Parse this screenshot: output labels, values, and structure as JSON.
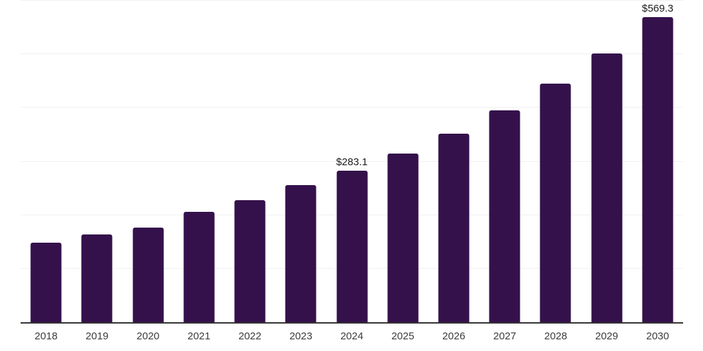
{
  "chart_data": {
    "type": "bar",
    "title": "",
    "xlabel": "",
    "ylabel": "",
    "categories": [
      "2018",
      "2019",
      "2020",
      "2021",
      "2022",
      "2023",
      "2024",
      "2025",
      "2026",
      "2027",
      "2028",
      "2029",
      "2030"
    ],
    "values": [
      147.9,
      163.4,
      177.1,
      206.4,
      227.6,
      255.3,
      283.1,
      315.0,
      352.4,
      394.9,
      444.7,
      502.1,
      569.3
    ],
    "data_labels": {
      "2024": "$283.1",
      "2030": "$569.3"
    },
    "ylim": [
      0,
      600
    ],
    "gridline_interval": 100,
    "grid": "horizontal-only",
    "legend": "none",
    "y_tick_labels": "none",
    "colors": {
      "bar": "#34114B",
      "gridline": "#f0f0f0",
      "axis_line": "#333333",
      "x_tick_label": "#3c3c3c",
      "data_label": "#1a1a1a",
      "background": "#ffffff"
    }
  }
}
